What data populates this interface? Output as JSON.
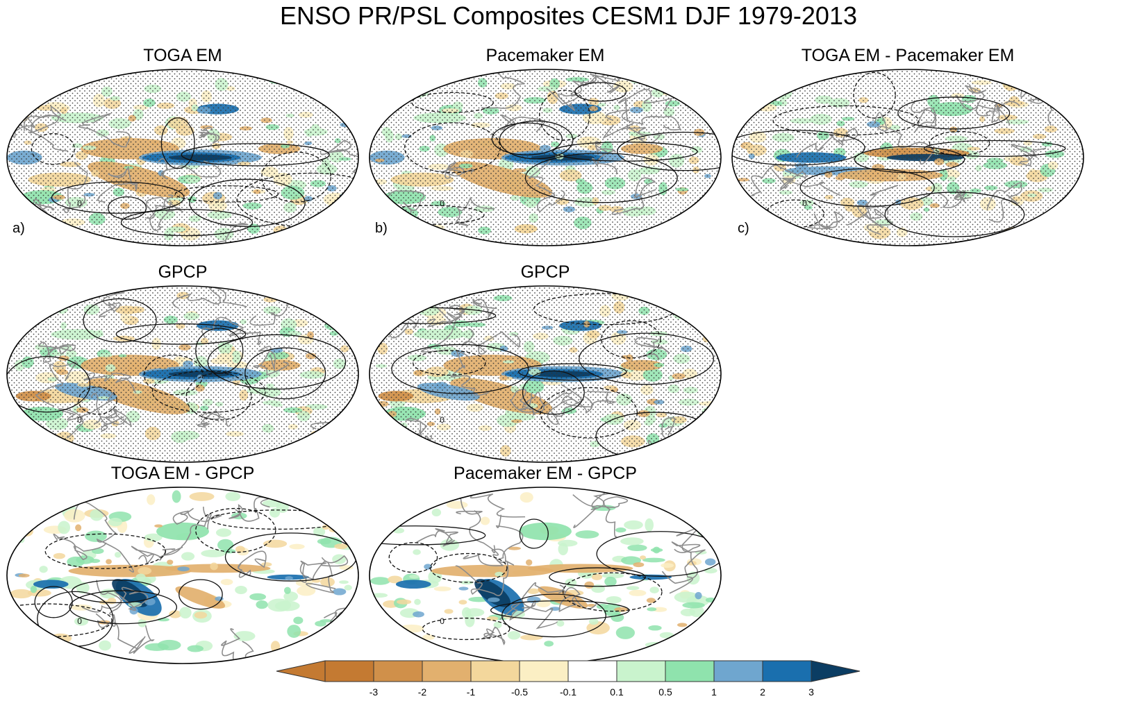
{
  "figure": {
    "title": "ENSO PR/PSL Composites CESM1 DJF 1979-2013"
  },
  "panels": [
    {
      "id": "toga-em",
      "title": "TOGA EM",
      "letter": "a)",
      "row": 0,
      "col": 0,
      "style": "model"
    },
    {
      "id": "pacemaker-em",
      "title": "Pacemaker EM",
      "letter": "b)",
      "row": 0,
      "col": 1,
      "style": "model"
    },
    {
      "id": "toga-minus-pacemaker",
      "title": "TOGA EM - Pacemaker EM",
      "letter": "c)",
      "row": 0,
      "col": 2,
      "style": "diff"
    },
    {
      "id": "gpcp-a",
      "title": "GPCP",
      "letter": "",
      "row": 1,
      "col": 0,
      "style": "obs"
    },
    {
      "id": "gpcp-b",
      "title": "GPCP",
      "letter": "",
      "row": 1,
      "col": 1,
      "style": "obs"
    },
    {
      "id": "toga-minus-gpcp",
      "title": "TOGA EM - GPCP",
      "letter": "",
      "row": 2,
      "col": 0,
      "style": "bias"
    },
    {
      "id": "pacemaker-minus-gpcp",
      "title": "Pacemaker EM - GPCP",
      "letter": "",
      "row": 2,
      "col": 1,
      "style": "bias"
    }
  ],
  "colorbar": {
    "labels": [
      "-3",
      "-2",
      "-1",
      "-0.5",
      "-0.1",
      "0.1",
      "0.5",
      "1",
      "2",
      "3"
    ],
    "colors": [
      "#c47a32",
      "#d0904a",
      "#e2b06e",
      "#f3d79c",
      "#fbefc4",
      "#ffffff",
      "#c9f3cd",
      "#8fe3ad",
      "#6fa6cf",
      "#1a6fae",
      "#0b3d63"
    ],
    "triangle_left": "#c47a32",
    "triangle_right": "#0b3d63"
  }
}
